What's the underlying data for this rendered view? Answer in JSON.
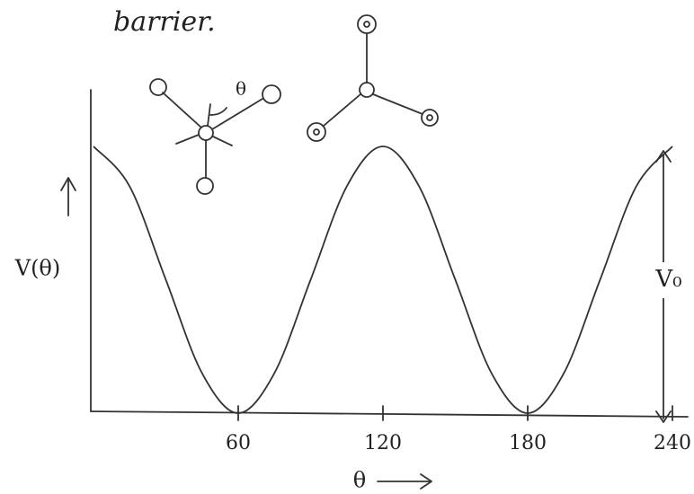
{
  "chart_data": {
    "type": "line",
    "title": "barrier.",
    "ylabel": "V(θ)",
    "xlabel": "θ",
    "annotations": [
      "θ",
      "V₀"
    ],
    "x": [
      0,
      15,
      30,
      45,
      60,
      75,
      90,
      105,
      120,
      135,
      150,
      165,
      180,
      195,
      210,
      225,
      240
    ],
    "values": [
      1,
      0.85,
      0.5,
      0.15,
      0,
      0.15,
      0.5,
      0.85,
      1,
      0.85,
      0.5,
      0.15,
      0,
      0.15,
      0.5,
      0.85,
      1
    ],
    "color": "#333333",
    "title_color": "#2a3f9a",
    "xlim": [
      0,
      240
    ],
    "ylim": [
      0,
      1
    ],
    "xticks": [
      60,
      120,
      180,
      240
    ]
  }
}
